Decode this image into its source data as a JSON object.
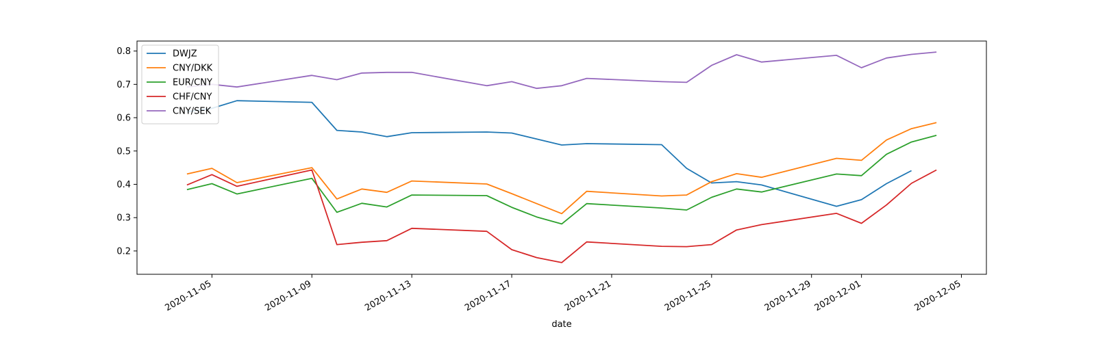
{
  "chart_data": {
    "type": "line",
    "title": "",
    "xlabel": "date",
    "ylabel": "",
    "x": [
      "2020-11-04",
      "2020-11-05",
      "2020-11-06",
      "2020-11-09",
      "2020-11-10",
      "2020-11-11",
      "2020-11-12",
      "2020-11-13",
      "2020-11-16",
      "2020-11-17",
      "2020-11-18",
      "2020-11-19",
      "2020-11-20",
      "2020-11-23",
      "2020-11-24",
      "2020-11-25",
      "2020-11-26",
      "2020-11-27",
      "2020-11-30",
      "2020-12-01",
      "2020-12-02",
      "2020-12-03",
      "2020-12-04"
    ],
    "xlim": [
      "2020-11-02",
      "2020-12-06"
    ],
    "ylim": [
      0.13,
      0.83
    ],
    "x_ticks": [
      "2020-11-05",
      "2020-11-09",
      "2020-11-13",
      "2020-11-17",
      "2020-11-21",
      "2020-11-25",
      "2020-11-29",
      "2020-12-01",
      "2020-12-05"
    ],
    "y_ticks": [
      "0.2",
      "0.3",
      "0.4",
      "0.5",
      "0.6",
      "0.7",
      "0.8"
    ],
    "grid": false,
    "legend_position": "top-left",
    "series": [
      {
        "name": "DWJZ",
        "color": "#1f77b4",
        "values": [
          0.618,
          0.628,
          0.651,
          0.646,
          0.562,
          0.557,
          0.543,
          0.555,
          0.557,
          0.554,
          0.536,
          0.518,
          0.522,
          0.519,
          0.448,
          0.404,
          0.408,
          0.398,
          0.334,
          0.354,
          0.402,
          0.441,
          null
        ]
      },
      {
        "name": "CNY/DKK",
        "color": "#ff7f0e",
        "values": [
          0.431,
          0.448,
          0.405,
          0.45,
          0.356,
          0.386,
          0.376,
          0.41,
          0.401,
          0.372,
          0.342,
          0.312,
          0.379,
          0.365,
          0.368,
          0.408,
          0.432,
          0.421,
          0.478,
          0.472,
          0.533,
          0.567,
          0.585
        ]
      },
      {
        "name": "EUR/CNY",
        "color": "#2ca02c",
        "values": [
          0.384,
          0.402,
          0.371,
          0.418,
          0.316,
          0.343,
          0.332,
          0.368,
          0.366,
          0.331,
          0.302,
          0.281,
          0.342,
          0.329,
          0.323,
          0.361,
          0.386,
          0.377,
          0.431,
          0.426,
          0.49,
          0.527,
          0.547
        ]
      },
      {
        "name": "CHF/CNY",
        "color": "#d62728",
        "values": [
          0.398,
          0.429,
          0.394,
          0.443,
          0.219,
          0.226,
          0.231,
          0.268,
          0.259,
          0.204,
          0.18,
          0.165,
          0.227,
          0.214,
          0.213,
          0.219,
          0.263,
          0.279,
          0.313,
          0.283,
          0.338,
          0.403,
          0.443
        ]
      },
      {
        "name": "CNY/SEK",
        "color": "#9467bd",
        "values": [
          0.692,
          0.7,
          0.692,
          0.727,
          0.714,
          0.734,
          0.736,
          0.736,
          0.696,
          0.708,
          0.688,
          0.696,
          0.718,
          0.708,
          0.706,
          0.757,
          0.789,
          0.767,
          0.787,
          0.75,
          0.779,
          0.79,
          0.797
        ]
      }
    ]
  }
}
